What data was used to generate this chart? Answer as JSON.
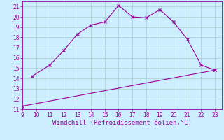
{
  "line1_x": [
    9.7,
    11,
    12,
    13,
    14,
    15,
    16,
    17,
    18,
    19,
    20,
    21,
    22,
    23
  ],
  "line1_y": [
    14.2,
    15.3,
    16.7,
    18.3,
    19.2,
    19.5,
    21.1,
    20.0,
    19.9,
    20.7,
    19.5,
    17.8,
    15.3,
    14.8
  ],
  "line2_x": [
    9,
    23
  ],
  "line2_y": [
    11.3,
    14.8
  ],
  "line_color": "#990099",
  "bg_color": "#cceeff",
  "grid_color": "#aacccc",
  "xlabel": "Windchill (Refroidissement éolien,°C)",
  "xlim": [
    9,
    23.5
  ],
  "ylim": [
    11,
    21.5
  ],
  "xticks": [
    9,
    10,
    11,
    12,
    13,
    14,
    15,
    16,
    17,
    18,
    19,
    20,
    21,
    22,
    23
  ],
  "yticks": [
    11,
    12,
    13,
    14,
    15,
    16,
    17,
    18,
    19,
    20,
    21
  ],
  "tick_fontsize": 5.5,
  "xlabel_fontsize": 6.5
}
